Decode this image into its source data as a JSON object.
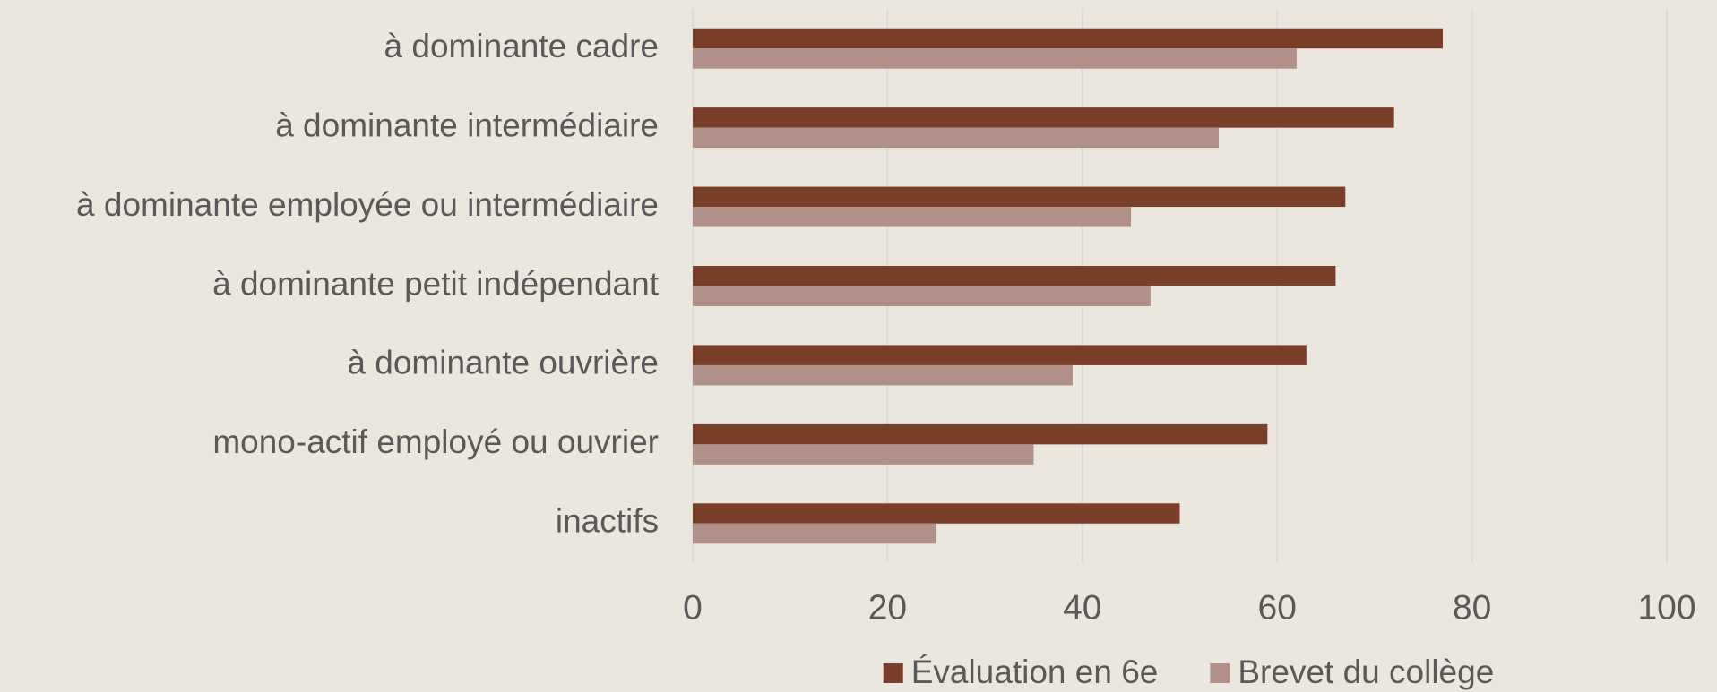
{
  "chart_data": {
    "type": "hbar",
    "categories": [
      "à dominante cadre",
      "à dominante intermédiaire",
      "à dominante employée ou intermédiaire",
      "à dominante petit indépendant",
      "à dominante ouvrière",
      "mono-actif employé ou ouvrier",
      "inactifs"
    ],
    "series": [
      {
        "name": "Évaluation en 6e",
        "color": "#7a3f28",
        "values": [
          77,
          72,
          67,
          66,
          63,
          59,
          50
        ]
      },
      {
        "name": "Brevet du collège",
        "color": "#b09088",
        "values": [
          62,
          54,
          45,
          47,
          39,
          35,
          25
        ]
      }
    ],
    "xlim": [
      0,
      100
    ],
    "xticks": [
      0,
      20,
      40,
      60,
      80,
      100
    ],
    "grid": true,
    "legend": "bottom"
  }
}
